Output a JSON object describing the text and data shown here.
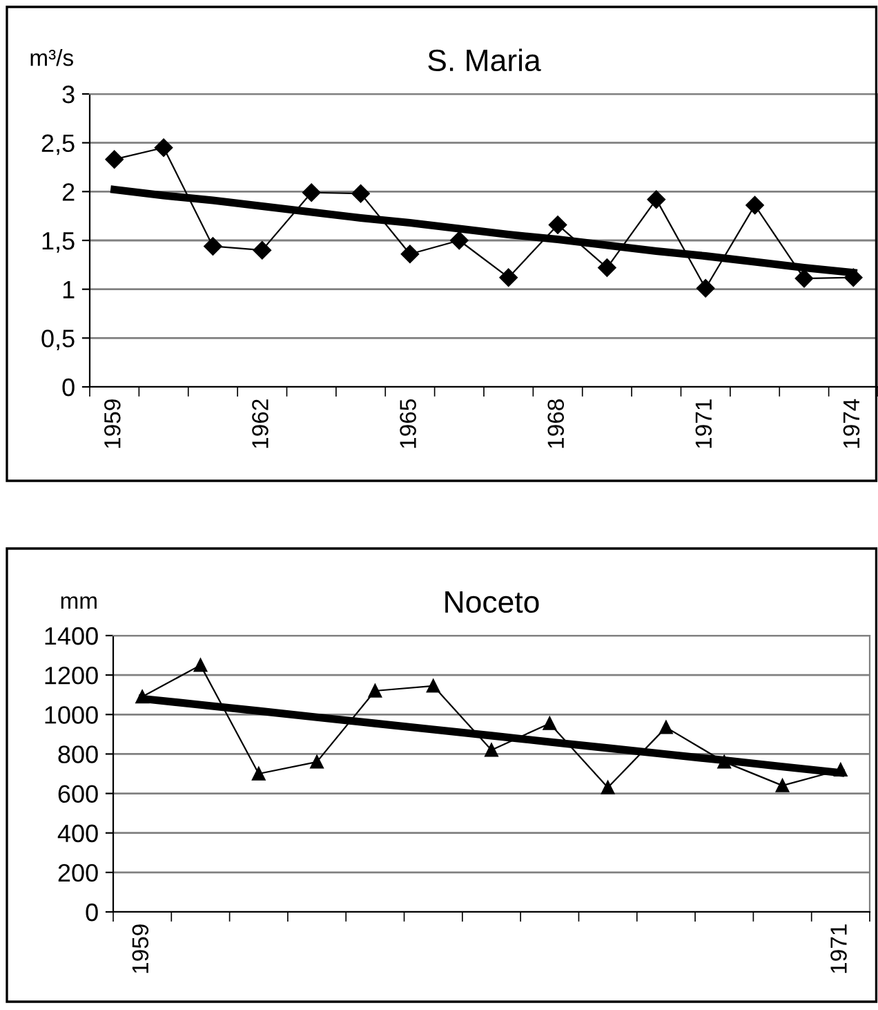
{
  "chart_data": [
    {
      "type": "line",
      "title": "S. Maria",
      "ylabel": "m³/s",
      "categories": [
        "1959",
        null,
        null,
        "1962",
        null,
        null,
        "1965",
        null,
        null,
        "1968",
        null,
        null,
        "1971",
        null,
        null,
        "1974"
      ],
      "series": [
        {
          "color": "#000000",
          "marker": "diamond",
          "values": [
            2.33,
            2.45,
            1.44,
            1.4,
            1.99,
            1.98,
            1.36,
            1.5,
            1.12,
            1.66,
            1.22,
            1.92,
            1.01,
            1.86,
            1.11,
            1.12
          ]
        },
        {
          "color": "#000000",
          "marker": "none",
          "values": [
            2.02,
            1.96,
            1.91,
            1.85,
            1.79,
            1.73,
            1.68,
            1.62,
            1.56,
            1.51,
            1.45,
            1.39,
            1.34,
            1.28,
            1.22,
            1.17
          ]
        }
      ],
      "ylim": [
        0,
        3
      ],
      "yticks": [
        0,
        {
          "value": 0.5,
          "label": "0,5"
        },
        1,
        {
          "value": 1.5,
          "label": "1,5"
        },
        2,
        {
          "value": 2.5,
          "label": "2,5"
        },
        3
      ],
      "grid": "y",
      "legend": false
    },
    {
      "type": "line",
      "title": "Noceto",
      "ylabel": "mm",
      "categories": [
        "1959",
        null,
        null,
        null,
        null,
        null,
        null,
        null,
        null,
        null,
        null,
        null,
        "1971"
      ],
      "series": [
        {
          "color": "#000000",
          "marker": "triangle",
          "values": [
            1090,
            1250,
            700,
            760,
            1120,
            1145,
            820,
            955,
            630,
            935,
            760,
            640,
            720
          ]
        },
        {
          "color": "#000000",
          "marker": "none",
          "values": [
            1080,
            1049,
            1018,
            986,
            955,
            924,
            893,
            861,
            830,
            799,
            768,
            736,
            705
          ]
        }
      ],
      "ylim": [
        0,
        1400
      ],
      "yticks": [
        0,
        200,
        400,
        600,
        800,
        1000,
        1200,
        1400
      ],
      "grid": "y",
      "legend": false
    }
  ]
}
